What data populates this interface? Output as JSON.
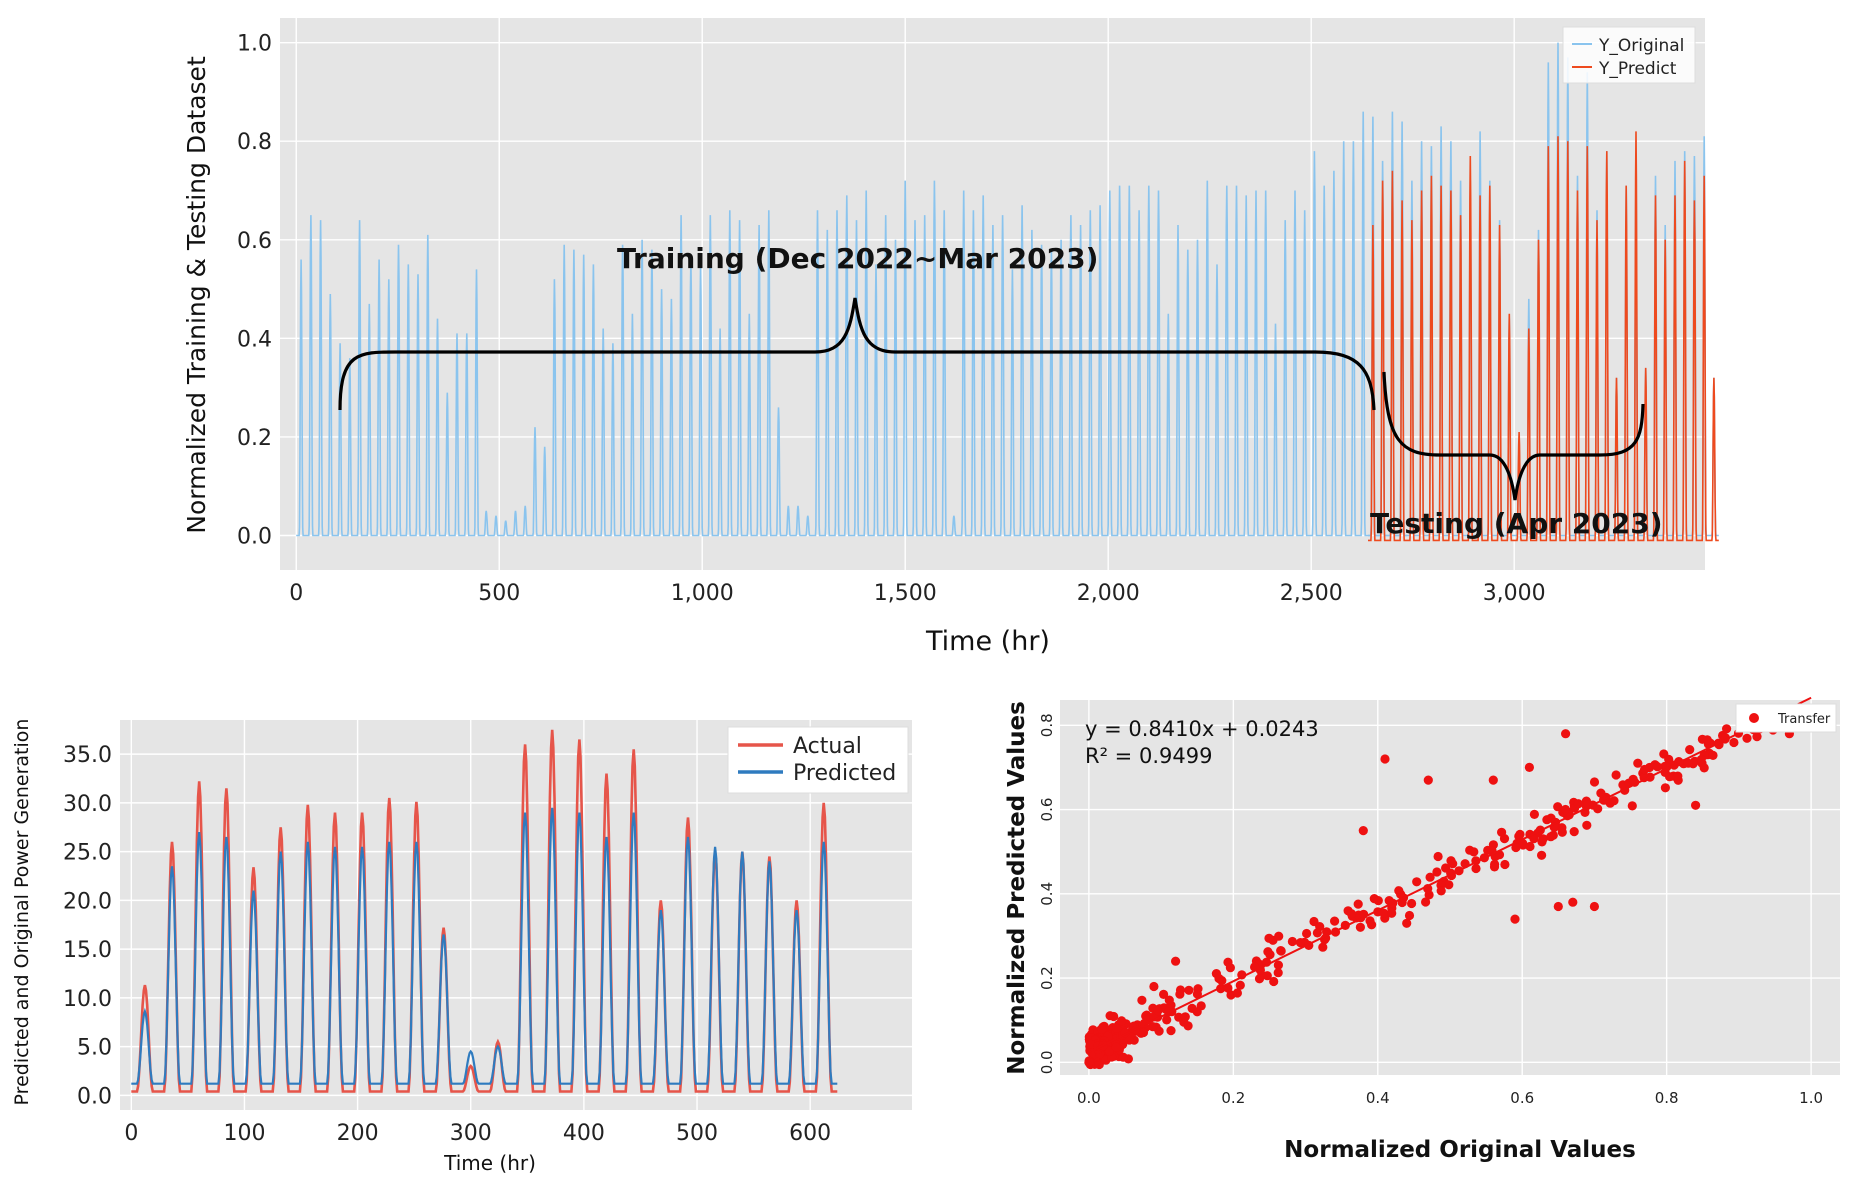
{
  "colors": {
    "original": "#8ac4ee",
    "predict": "#ee4a1e",
    "actual": "#e6554a",
    "predicted": "#2f7bbf",
    "scatter": "#ee1111",
    "plot_bg": "#e5e5e5"
  },
  "chart_data": [
    {
      "type": "line",
      "xlabel": "Time (hr)",
      "ylabel": "Normalized Training & Testing Dataset",
      "xlim": [
        -40,
        3470
      ],
      "ylim": [
        -0.07,
        1.05
      ],
      "xticks": [
        0,
        500,
        1000,
        1500,
        2000,
        2500,
        3000
      ],
      "xtick_labels": [
        "0",
        "500",
        "1,000",
        "1,500",
        "2,000",
        "2,500",
        "3,000"
      ],
      "yticks": [
        0,
        0.2,
        0.4,
        0.6,
        0.8,
        1.0
      ],
      "ytick_labels": [
        "0.0",
        "0.2",
        "0.4",
        "0.6",
        "0.8",
        "1.0"
      ],
      "legend": [
        "Y_Original",
        "Y_Predict"
      ],
      "legend_position": "top-right",
      "series": [
        {
          "name": "Y_Original",
          "period_hours": 24,
          "start_hour": 0,
          "daily_peaks": [
            0.56,
            0.65,
            0.64,
            0.49,
            0.39,
            0.36,
            0.64,
            0.47,
            0.56,
            0.52,
            0.59,
            0.55,
            0.53,
            0.61,
            0.44,
            0.29,
            0.41,
            0.41,
            0.54,
            0.05,
            0.04,
            0.03,
            0.05,
            0.06,
            0.22,
            0.18,
            0.52,
            0.59,
            0.58,
            0.57,
            0.55,
            0.42,
            0.39,
            0.59,
            0.45,
            0.6,
            0.58,
            0.5,
            0.48,
            0.65,
            0.56,
            0.55,
            0.65,
            0.42,
            0.66,
            0.64,
            0.45,
            0.63,
            0.66,
            0.26,
            0.06,
            0.06,
            0.04,
            0.66,
            0.62,
            0.66,
            0.69,
            0.64,
            0.7,
            0.55,
            0.65,
            0.6,
            0.72,
            0.64,
            0.65,
            0.72,
            0.66,
            0.04,
            0.7,
            0.66,
            0.69,
            0.63,
            0.65,
            0.54,
            0.67,
            0.62,
            0.59,
            0.58,
            0.6,
            0.65,
            0.63,
            0.66,
            0.67,
            0.7,
            0.71,
            0.71,
            0.66,
            0.71,
            0.7,
            0.45,
            0.63,
            0.58,
            0.6,
            0.72,
            0.55,
            0.71,
            0.71,
            0.69,
            0.7,
            0.7,
            0.43,
            0.64,
            0.7,
            0.66,
            0.78,
            0.71,
            0.74,
            0.8,
            0.8,
            0.86,
            0.85,
            0.66,
            0.75,
            0.8
          ]
        },
        {
          "name": "Y_Predict",
          "period_hours": 24,
          "start_hour": 2640,
          "daily_peaks": [
            0.63,
            0.72,
            0.74,
            0.68,
            0.64,
            0.7,
            0.73,
            0.71,
            0.7,
            0.65,
            0.77,
            0.69,
            0.71,
            0.63,
            0.45,
            0.21,
            0.42,
            0.6,
            0.79,
            0.81,
            0.8,
            0.7,
            0.79,
            0.64,
            0.78,
            0.32,
            0.71,
            0.82,
            0.34,
            0.69,
            0.6,
            0.69,
            0.76,
            0.68,
            0.73,
            0.32
          ]
        },
        {
          "name": "Y_Original (testing)",
          "period_hours": 24,
          "start_hour": 2640,
          "daily_peaks": [
            0.66,
            0.76,
            0.86,
            0.84,
            0.72,
            0.8,
            0.79,
            0.83,
            0.8,
            0.72,
            0.72,
            0.82,
            0.72,
            0.64,
            0.44,
            0.18,
            0.48,
            0.62,
            0.96,
            1.0,
            0.97,
            0.73,
            0.94,
            0.66,
            0.78,
            0.32,
            0.71,
            0.74,
            0.34,
            0.73,
            0.63,
            0.76,
            0.78,
            0.77,
            0.81,
            0.32
          ]
        }
      ],
      "annotations": [
        {
          "text": "Training (Dec 2022~Mar 2023)",
          "x_range": [
            0,
            2610
          ]
        },
        {
          "text": "Testing (Apr 2023)",
          "x_range": [
            2630,
            3290
          ]
        }
      ]
    },
    {
      "type": "line",
      "xlabel": "Time (hr)",
      "ylabel": "Predicted and Original Power Generation",
      "xlim": [
        -10,
        690
      ],
      "ylim": [
        -1.5,
        38.5
      ],
      "xticks": [
        0,
        100,
        200,
        300,
        400,
        500,
        600
      ],
      "xtick_labels": [
        "0",
        "100",
        "200",
        "300",
        "400",
        "500",
        "600"
      ],
      "yticks": [
        0,
        5,
        10,
        15,
        20,
        25,
        30,
        35
      ],
      "ytick_labels": [
        "0.0",
        "5.0",
        "10.0",
        "15.0",
        "20.0",
        "25.0",
        "30.0",
        "35.0"
      ],
      "legend": [
        "Actual",
        "Predicted"
      ],
      "legend_position": "top-right",
      "period_hours": 24,
      "series": [
        {
          "name": "Actual",
          "daily_peaks": [
            11.3,
            26.0,
            32.2,
            31.5,
            23.4,
            27.5,
            29.8,
            29.0,
            29.0,
            30.5,
            30.1,
            17.2,
            3.0,
            5.5,
            36.0,
            37.5,
            36.5,
            33.0,
            35.5,
            20.0,
            28.5,
            25.0,
            25.0,
            24.5,
            20.0,
            30.0
          ],
          "baseline": 0.4
        },
        {
          "name": "Predicted",
          "daily_peaks": [
            8.6,
            23.5,
            27.0,
            26.5,
            21.0,
            25.0,
            26.0,
            25.5,
            25.5,
            26.0,
            26.0,
            16.5,
            4.5,
            5.0,
            29.0,
            29.5,
            29.0,
            26.5,
            29.0,
            19.0,
            26.5,
            25.5,
            25.0,
            24.0,
            19.0,
            26.0
          ],
          "baseline": 1.2
        }
      ]
    },
    {
      "type": "scatter",
      "xlabel": "Normalized Original Values",
      "ylabel": "Normalized Predicted Values",
      "xlim": [
        -0.04,
        1.04
      ],
      "ylim": [
        -0.03,
        0.86
      ],
      "xticks": [
        0,
        0.2,
        0.4,
        0.6,
        0.8,
        1.0
      ],
      "xtick_labels": [
        "0.0",
        "0.2",
        "0.4",
        "0.6",
        "0.8",
        "1.0"
      ],
      "yticks": [
        0,
        0.2,
        0.4,
        0.6,
        0.8
      ],
      "ytick_labels": [
        "0.0",
        "0.2",
        "0.4",
        "0.6",
        "0.8"
      ],
      "legend": [
        "Transfer"
      ],
      "legend_position": "top-right",
      "equation": "y = 0.8410x + 0.0243",
      "r2": "R² = 0.9499",
      "fit": {
        "slope": 0.841,
        "intercept": 0.0243,
        "x_range": [
          0,
          1.0
        ]
      },
      "highlighted_points": [
        [
          0.41,
          0.72
        ],
        [
          0.47,
          0.67
        ],
        [
          0.38,
          0.55
        ],
        [
          0.61,
          0.7
        ],
        [
          0.66,
          0.78
        ],
        [
          0.56,
          0.67
        ],
        [
          0.84,
          0.61
        ],
        [
          0.65,
          0.37
        ],
        [
          0.7,
          0.37
        ],
        [
          0.67,
          0.38
        ],
        [
          0.59,
          0.34
        ],
        [
          0.44,
          0.33
        ],
        [
          0.12,
          0.24
        ],
        [
          1.0,
          0.8
        ],
        [
          0.95,
          0.8
        ],
        [
          0.97,
          0.78
        ],
        [
          0.92,
          0.79
        ],
        [
          0.76,
          0.71
        ],
        [
          0.83,
          0.71
        ],
        [
          0.0,
          0.0
        ],
        [
          0.02,
          0.04
        ],
        [
          0.05,
          0.07
        ],
        [
          0.09,
          0.18
        ],
        [
          0.15,
          0.12
        ]
      ],
      "approx_point_count": 420
    }
  ]
}
